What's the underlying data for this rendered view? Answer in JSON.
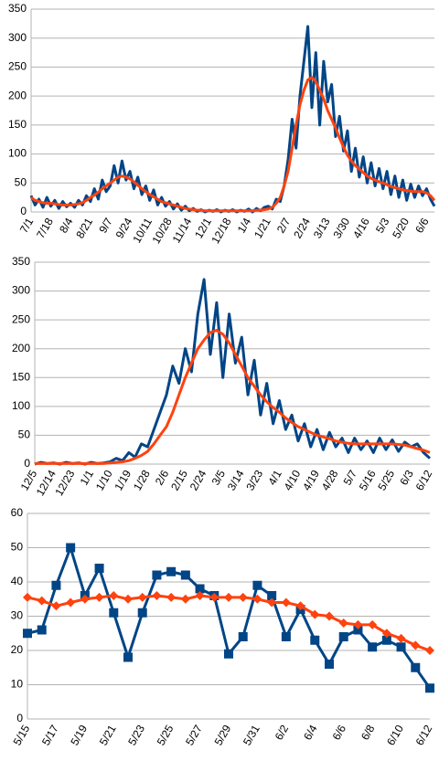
{
  "chart_data": [
    {
      "type": "line",
      "ylim": [
        0,
        350
      ],
      "yticks": [
        0,
        50,
        100,
        150,
        200,
        250,
        300,
        350
      ],
      "grid": true,
      "categories": [
        "7/1",
        null,
        null,
        null,
        null,
        "7/18",
        null,
        null,
        null,
        null,
        "8/4",
        null,
        null,
        null,
        null,
        "8/21",
        null,
        null,
        null,
        null,
        "9/7",
        null,
        null,
        null,
        null,
        "9/24",
        null,
        null,
        null,
        null,
        "10/11",
        null,
        null,
        null,
        null,
        "10/28",
        null,
        null,
        null,
        null,
        "11/14",
        null,
        null,
        null,
        null,
        "12/1",
        null,
        null,
        null,
        null,
        "12/18",
        null,
        null,
        null,
        null,
        "1/4",
        null,
        null,
        null,
        null,
        "1/21",
        null,
        null,
        null,
        null,
        "2/7",
        null,
        null,
        null,
        null,
        "2/24",
        null,
        null,
        null,
        null,
        "3/13",
        null,
        null,
        null,
        null,
        "3/30",
        null,
        null,
        null,
        null,
        "4/16",
        null,
        null,
        null,
        null,
        "5/3",
        null,
        null,
        null,
        null,
        "5/20",
        null,
        null,
        null,
        null,
        "6/6",
        null,
        null
      ],
      "series": [
        {
          "color": "#004586",
          "values": [
            28,
            12,
            22,
            8,
            25,
            10,
            20,
            6,
            18,
            9,
            15,
            8,
            20,
            12,
            28,
            18,
            40,
            22,
            55,
            35,
            45,
            80,
            50,
            88,
            55,
            70,
            40,
            60,
            30,
            45,
            20,
            38,
            12,
            25,
            10,
            18,
            5,
            14,
            3,
            10,
            2,
            6,
            1,
            4,
            0,
            3,
            1,
            4,
            0,
            3,
            1,
            4,
            0,
            3,
            1,
            5,
            0,
            6,
            2,
            8,
            10,
            5,
            22,
            18,
            45,
            90,
            160,
            110,
            200,
            260,
            320,
            180,
            275,
            150,
            260,
            190,
            220,
            130,
            165,
            105,
            140,
            70,
            110,
            60,
            95,
            50,
            85,
            45,
            75,
            40,
            70,
            30,
            62,
            25,
            55,
            20,
            48,
            25,
            45,
            28,
            40,
            22,
            10
          ]
        },
        {
          "color": "#ff420e",
          "values": [
            25,
            20,
            18,
            16,
            15,
            15,
            14,
            13,
            12,
            12,
            12,
            13,
            14,
            16,
            20,
            25,
            29,
            34,
            40,
            45,
            50,
            55,
            60,
            62,
            60,
            57,
            52,
            46,
            40,
            35,
            30,
            26,
            22,
            18,
            16,
            14,
            12,
            10,
            8,
            6,
            5,
            4,
            3,
            3,
            2,
            2,
            2,
            2,
            2,
            2,
            2,
            2,
            2,
            2,
            2,
            2,
            2,
            3,
            3,
            4,
            5,
            8,
            15,
            25,
            45,
            70,
            110,
            150,
            185,
            210,
            228,
            232,
            225,
            210,
            195,
            175,
            160,
            145,
            128,
            112,
            98,
            88,
            80,
            74,
            68,
            62,
            58,
            55,
            52,
            50,
            47,
            44,
            42,
            40,
            38,
            37,
            36,
            35,
            35,
            35,
            33,
            28,
            20
          ]
        }
      ]
    },
    {
      "type": "line",
      "ylim": [
        0,
        350
      ],
      "yticks": [
        0,
        50,
        100,
        150,
        200,
        250,
        300,
        350
      ],
      "grid": true,
      "categories": [
        "12/5",
        null,
        null,
        "12/14",
        null,
        null,
        "12/23",
        null,
        null,
        "1/1",
        null,
        null,
        "1/10",
        null,
        null,
        "1/19",
        null,
        null,
        "1/28",
        null,
        null,
        "2/6",
        null,
        null,
        "2/15",
        null,
        null,
        "2/24",
        null,
        null,
        "3/5",
        null,
        null,
        "3/14",
        null,
        null,
        "3/23",
        null,
        null,
        "4/1",
        null,
        null,
        "4/10",
        null,
        null,
        "4/19",
        null,
        null,
        "4/28",
        null,
        null,
        "5/7",
        null,
        null,
        "5/16",
        null,
        null,
        "5/25",
        null,
        null,
        "6/3",
        null,
        null,
        "6/12"
      ],
      "series": [
        {
          "color": "#004586",
          "values": [
            0,
            3,
            1,
            2,
            0,
            3,
            1,
            2,
            0,
            3,
            1,
            2,
            4,
            10,
            6,
            20,
            12,
            35,
            30,
            60,
            90,
            120,
            170,
            140,
            200,
            160,
            260,
            320,
            190,
            280,
            150,
            260,
            175,
            220,
            120,
            180,
            85,
            140,
            70,
            110,
            60,
            85,
            40,
            70,
            30,
            60,
            25,
            55,
            30,
            45,
            20,
            45,
            25,
            40,
            20,
            45,
            25,
            42,
            22,
            38,
            30,
            35,
            20,
            10
          ]
        },
        {
          "color": "#ff420e",
          "values": [
            1,
            1,
            1,
            1,
            1,
            1,
            1,
            1,
            1,
            1,
            1,
            1,
            2,
            3,
            4,
            6,
            10,
            15,
            22,
            35,
            50,
            65,
            90,
            120,
            150,
            175,
            200,
            215,
            228,
            232,
            225,
            210,
            190,
            170,
            150,
            135,
            120,
            108,
            98,
            90,
            80,
            72,
            65,
            60,
            55,
            50,
            47,
            44,
            40,
            38,
            36,
            35,
            35,
            35,
            35,
            35,
            35,
            35,
            34,
            33,
            30,
            27,
            24,
            20
          ]
        }
      ]
    },
    {
      "type": "line",
      "ylim": [
        0,
        60
      ],
      "yticks": [
        0,
        10,
        20,
        30,
        40,
        50,
        60
      ],
      "grid": true,
      "categories": [
        "5/15",
        null,
        "5/17",
        null,
        "5/19",
        null,
        "5/21",
        null,
        "5/23",
        null,
        "5/25",
        null,
        "5/27",
        null,
        "5/29",
        null,
        "5/31",
        null,
        "6/2",
        null,
        "6/4",
        null,
        "6/6",
        null,
        "6/8",
        null,
        "6/10",
        null,
        "6/12"
      ],
      "series": [
        {
          "color": "#004586",
          "marker": "square",
          "values": [
            25,
            26,
            39,
            50,
            36,
            44,
            31,
            18,
            31,
            42,
            43,
            42,
            38,
            36,
            19,
            24,
            39,
            36,
            24,
            32,
            23,
            16,
            24,
            26,
            21,
            23,
            21,
            15,
            9
          ]
        },
        {
          "color": "#ff420e",
          "marker": "diamond",
          "values": [
            35.5,
            34.5,
            33,
            34,
            35,
            35.5,
            36,
            35,
            35.5,
            36,
            35.5,
            35,
            36,
            35.5,
            35.5,
            35.5,
            35,
            34,
            34,
            33,
            30.5,
            30,
            28,
            27.5,
            27.5,
            25,
            23.5,
            21.5,
            20
          ]
        }
      ]
    }
  ]
}
